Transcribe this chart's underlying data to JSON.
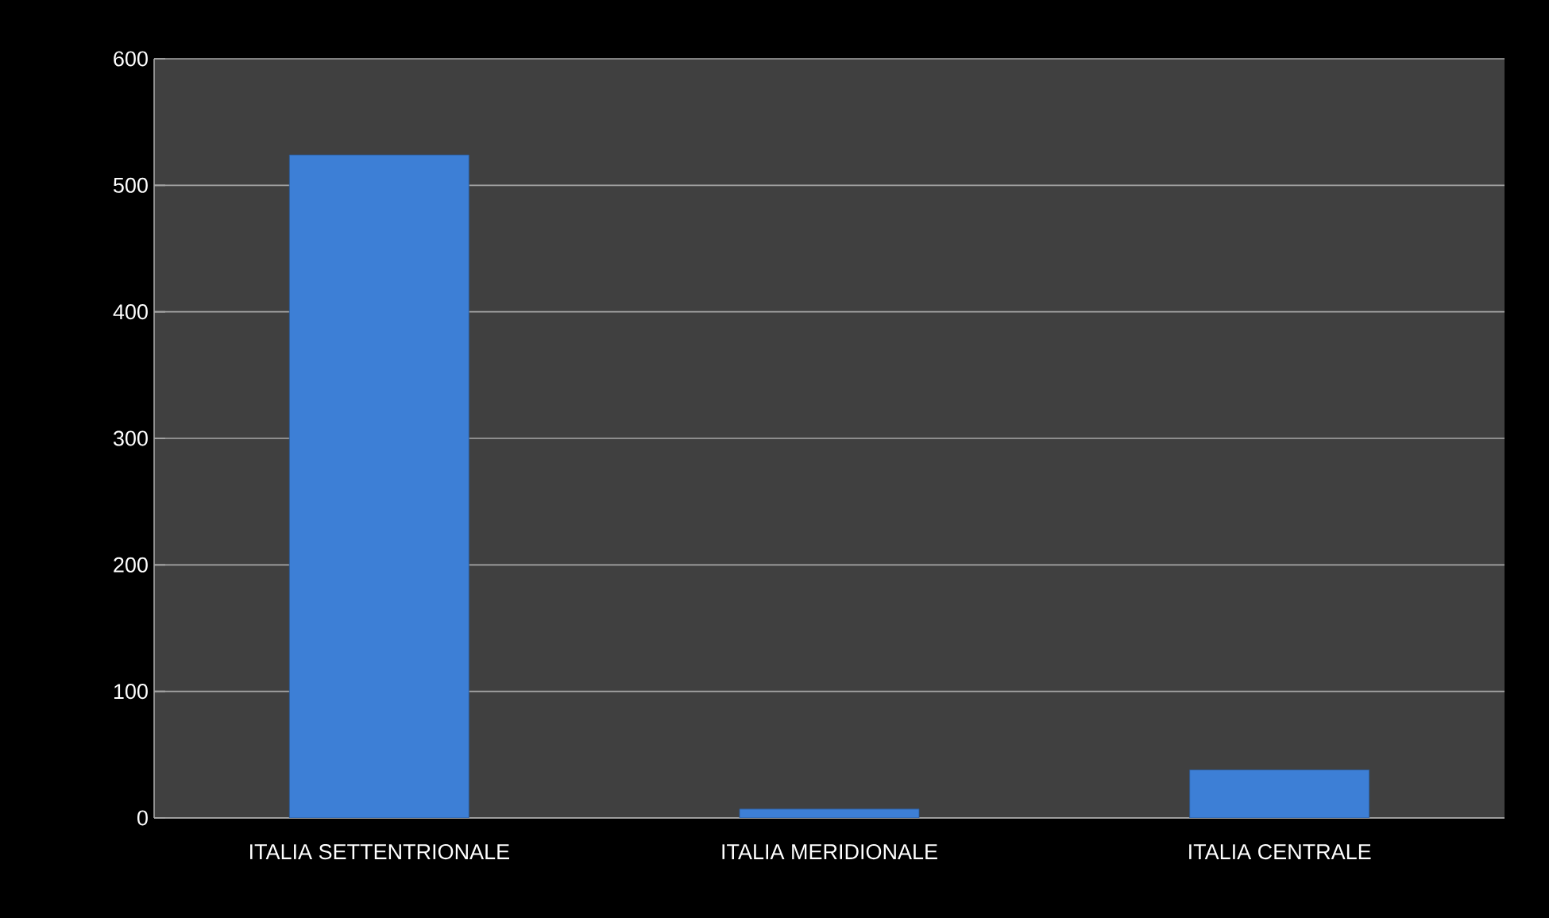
{
  "chart_data": {
    "type": "bar",
    "categories": [
      "ITALIA SETTENTRIONALE",
      "ITALIA MERIDIONALE",
      "ITALIA CENTRALE"
    ],
    "values": [
      524,
      7,
      38
    ],
    "color": "#3d7fd6",
    "ylim": [
      0,
      600
    ],
    "yticks": [
      0,
      100,
      200,
      300,
      400,
      500,
      600
    ],
    "grid": "y"
  }
}
